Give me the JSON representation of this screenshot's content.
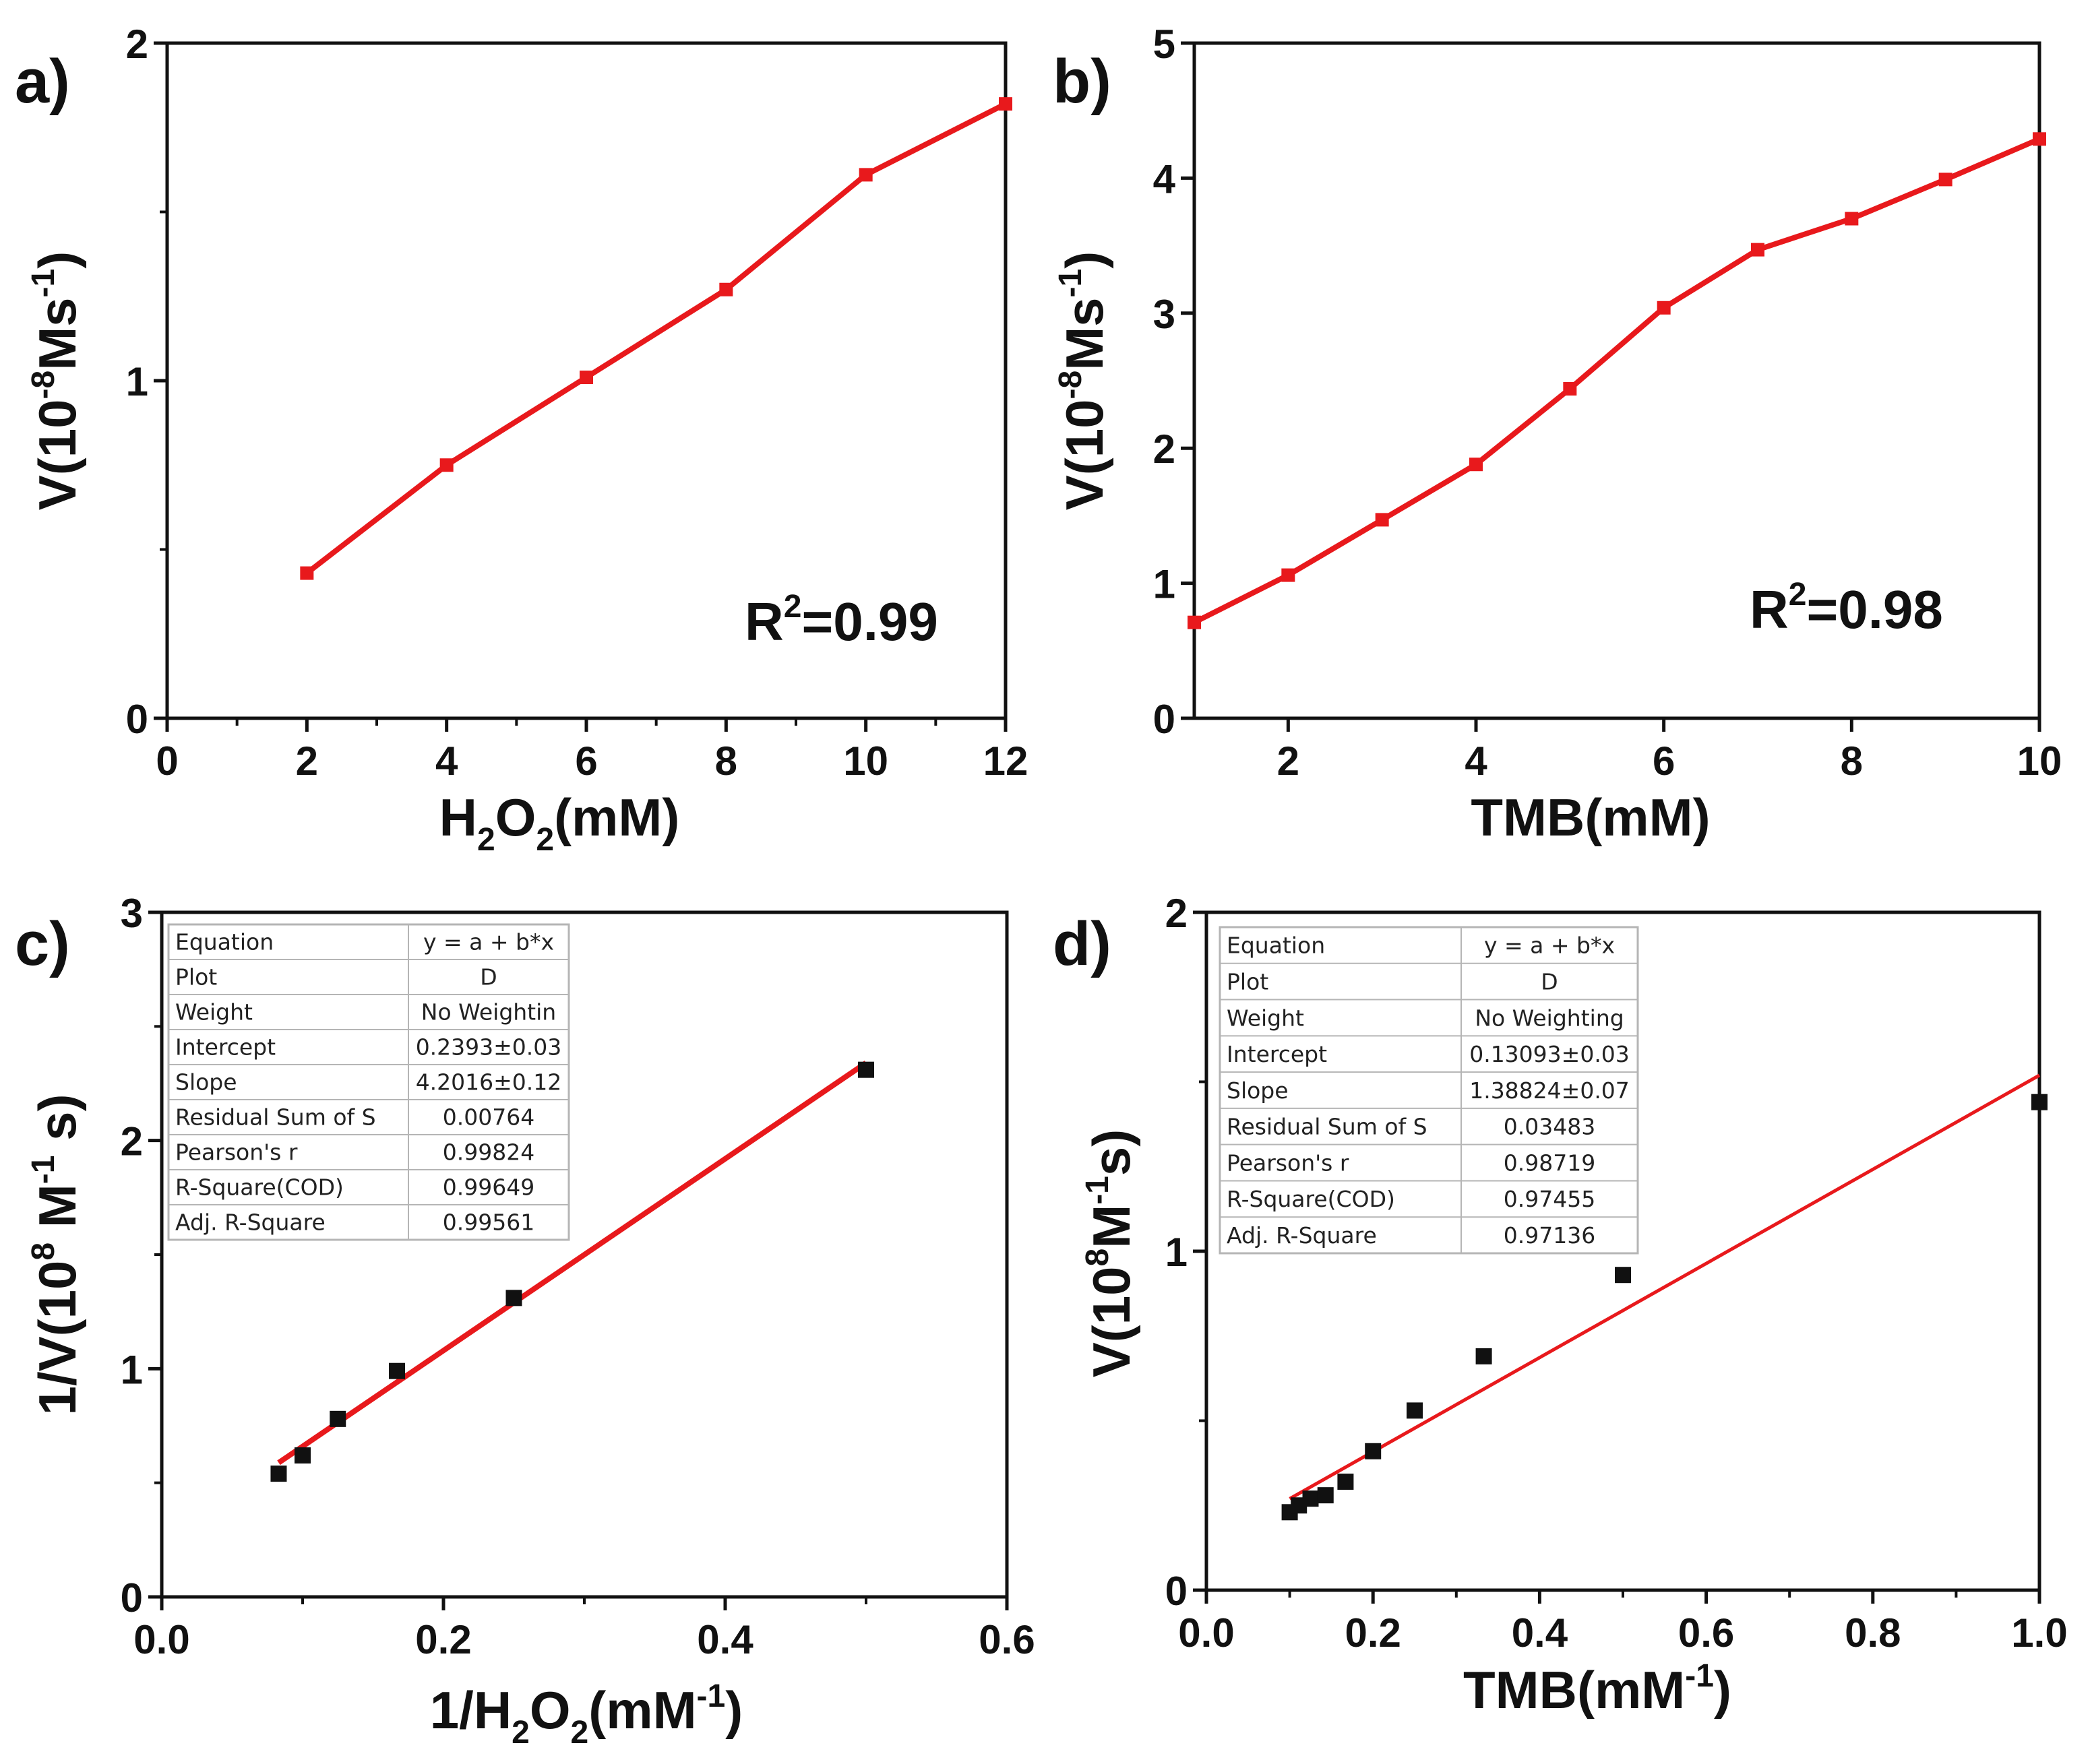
{
  "colors": {
    "series": "#e8191c",
    "points": "#111111",
    "axis": "#111111",
    "table_grid": "#b5b5b5"
  },
  "chart_data": [
    {
      "id": "a",
      "panel_label": "a)",
      "type": "line",
      "x": [
        2,
        4,
        6,
        8,
        10,
        12
      ],
      "y": [
        0.43,
        0.75,
        1.01,
        1.27,
        1.61,
        1.82
      ],
      "xlim": [
        0,
        12
      ],
      "ylim": [
        0,
        2
      ],
      "xticks": [
        0,
        2,
        4,
        6,
        8,
        10,
        12
      ],
      "xtick_labels": [
        "0",
        "2",
        "4",
        "6",
        "8",
        "10",
        "12"
      ],
      "yticks": [
        0,
        1,
        2
      ],
      "ytick_labels": [
        "0",
        "1",
        "2"
      ],
      "xlabel": {
        "t1": "H",
        "sub1": "2",
        "t2": "O",
        "sub2": "2",
        "t3": "(mM)"
      },
      "ylabel": {
        "t1": "V(10",
        "sup1": "-8",
        "t2": "Ms",
        "sup2": "-1",
        "t3": ")"
      },
      "annotation": {
        "t1": "R",
        "sup": "2",
        "t2": "=0.99"
      }
    },
    {
      "id": "b",
      "panel_label": "b)",
      "type": "line",
      "x": [
        1,
        2,
        3,
        4,
        5,
        6,
        7,
        8,
        9,
        10
      ],
      "y": [
        0.71,
        1.06,
        1.47,
        1.88,
        2.44,
        3.04,
        3.47,
        3.7,
        3.99,
        4.29
      ],
      "xlim": [
        1,
        10
      ],
      "ylim": [
        0,
        5
      ],
      "xticks": [
        2,
        4,
        6,
        8,
        10
      ],
      "xtick_labels": [
        "2",
        "4",
        "6",
        "8",
        "10"
      ],
      "yticks": [
        0,
        1,
        2,
        3,
        4,
        5
      ],
      "ytick_labels": [
        "0",
        "1",
        "2",
        "3",
        "4",
        "5"
      ],
      "xlabel": {
        "t1": "TMB(mM)"
      },
      "ylabel": {
        "t1": "V(10",
        "sup1": "-8",
        "t2": "Ms",
        "sup2": "-1",
        "t3": ")"
      },
      "annotation": {
        "t1": "R",
        "sup": "2",
        "t2": "=0.98"
      }
    },
    {
      "id": "c",
      "panel_label": "c)",
      "type": "scatter",
      "x": [
        0.083,
        0.1,
        0.125,
        0.167,
        0.25,
        0.5
      ],
      "y": [
        0.54,
        0.62,
        0.78,
        0.99,
        1.31,
        2.31
      ],
      "fit": {
        "intercept": 0.2393,
        "slope": 4.2016,
        "x_range": [
          0.083,
          0.5
        ]
      },
      "xlim": [
        0,
        0.6
      ],
      "ylim": [
        0,
        3
      ],
      "xticks": [
        0,
        0.2,
        0.4,
        0.6
      ],
      "xtick_labels": [
        "0.0",
        "0.2",
        "0.4",
        "0.6"
      ],
      "yticks": [
        0,
        1,
        2,
        3
      ],
      "ytick_labels": [
        "0",
        "1",
        "2",
        "3"
      ],
      "xlabel": {
        "t1": "1/H",
        "sub1": "2",
        "t2": "O",
        "sub2": "2",
        "t3": "(mM",
        "sup": "-1",
        "t4": ")"
      },
      "ylabel": {
        "t1": "1/V(10",
        "sup1": "8",
        "t2": " M",
        "sup2": "-1",
        "t3": " s)"
      },
      "fit_table": [
        [
          "Equation",
          "y = a + b*x"
        ],
        [
          "Plot",
          "D"
        ],
        [
          "Weight",
          "No Weightin"
        ],
        [
          "Intercept",
          "0.2393±0.03"
        ],
        [
          "Slope",
          "4.2016±0.12"
        ],
        [
          "Residual Sum of S",
          "0.00764"
        ],
        [
          "Pearson's r",
          "0.99824"
        ],
        [
          "R-Square(COD)",
          "0.99649"
        ],
        [
          "Adj. R-Square",
          "0.99561"
        ]
      ]
    },
    {
      "id": "d",
      "panel_label": "d)",
      "type": "scatter",
      "x": [
        0.1,
        0.111,
        0.125,
        0.143,
        0.167,
        0.2,
        0.25,
        0.333,
        0.5,
        1.0
      ],
      "y": [
        0.23,
        0.25,
        0.27,
        0.28,
        0.32,
        0.41,
        0.53,
        0.69,
        0.93,
        1.44
      ],
      "fit": {
        "intercept": 0.13093,
        "slope": 1.38824,
        "x_range": [
          0.1,
          1.0
        ]
      },
      "xlim": [
        0,
        1
      ],
      "ylim": [
        0,
        2
      ],
      "xticks": [
        0,
        0.2,
        0.4,
        0.6,
        0.8,
        1.0
      ],
      "xtick_labels": [
        "0.0",
        "0.2",
        "0.4",
        "0.6",
        "0.8",
        "1.0"
      ],
      "yticks": [
        0,
        1,
        2
      ],
      "ytick_labels": [
        "0",
        "1",
        "2"
      ],
      "xlabel": {
        "t1": "TMB(mM",
        "sup": "-1",
        "t2": ")"
      },
      "ylabel": {
        "t1": "V(10",
        "sup1": "8",
        "t2": "M",
        "sup2": "-1",
        "t3": "s)"
      },
      "fit_table": [
        [
          "Equation",
          "y = a + b*x"
        ],
        [
          "Plot",
          "D"
        ],
        [
          "Weight",
          "No Weighting"
        ],
        [
          "Intercept",
          "0.13093±0.03"
        ],
        [
          "Slope",
          "1.38824±0.07"
        ],
        [
          "Residual Sum of S",
          "0.03483"
        ],
        [
          "Pearson's r",
          "0.98719"
        ],
        [
          "R-Square(COD)",
          "0.97455"
        ],
        [
          "Adj. R-Square",
          "0.97136"
        ]
      ]
    }
  ]
}
